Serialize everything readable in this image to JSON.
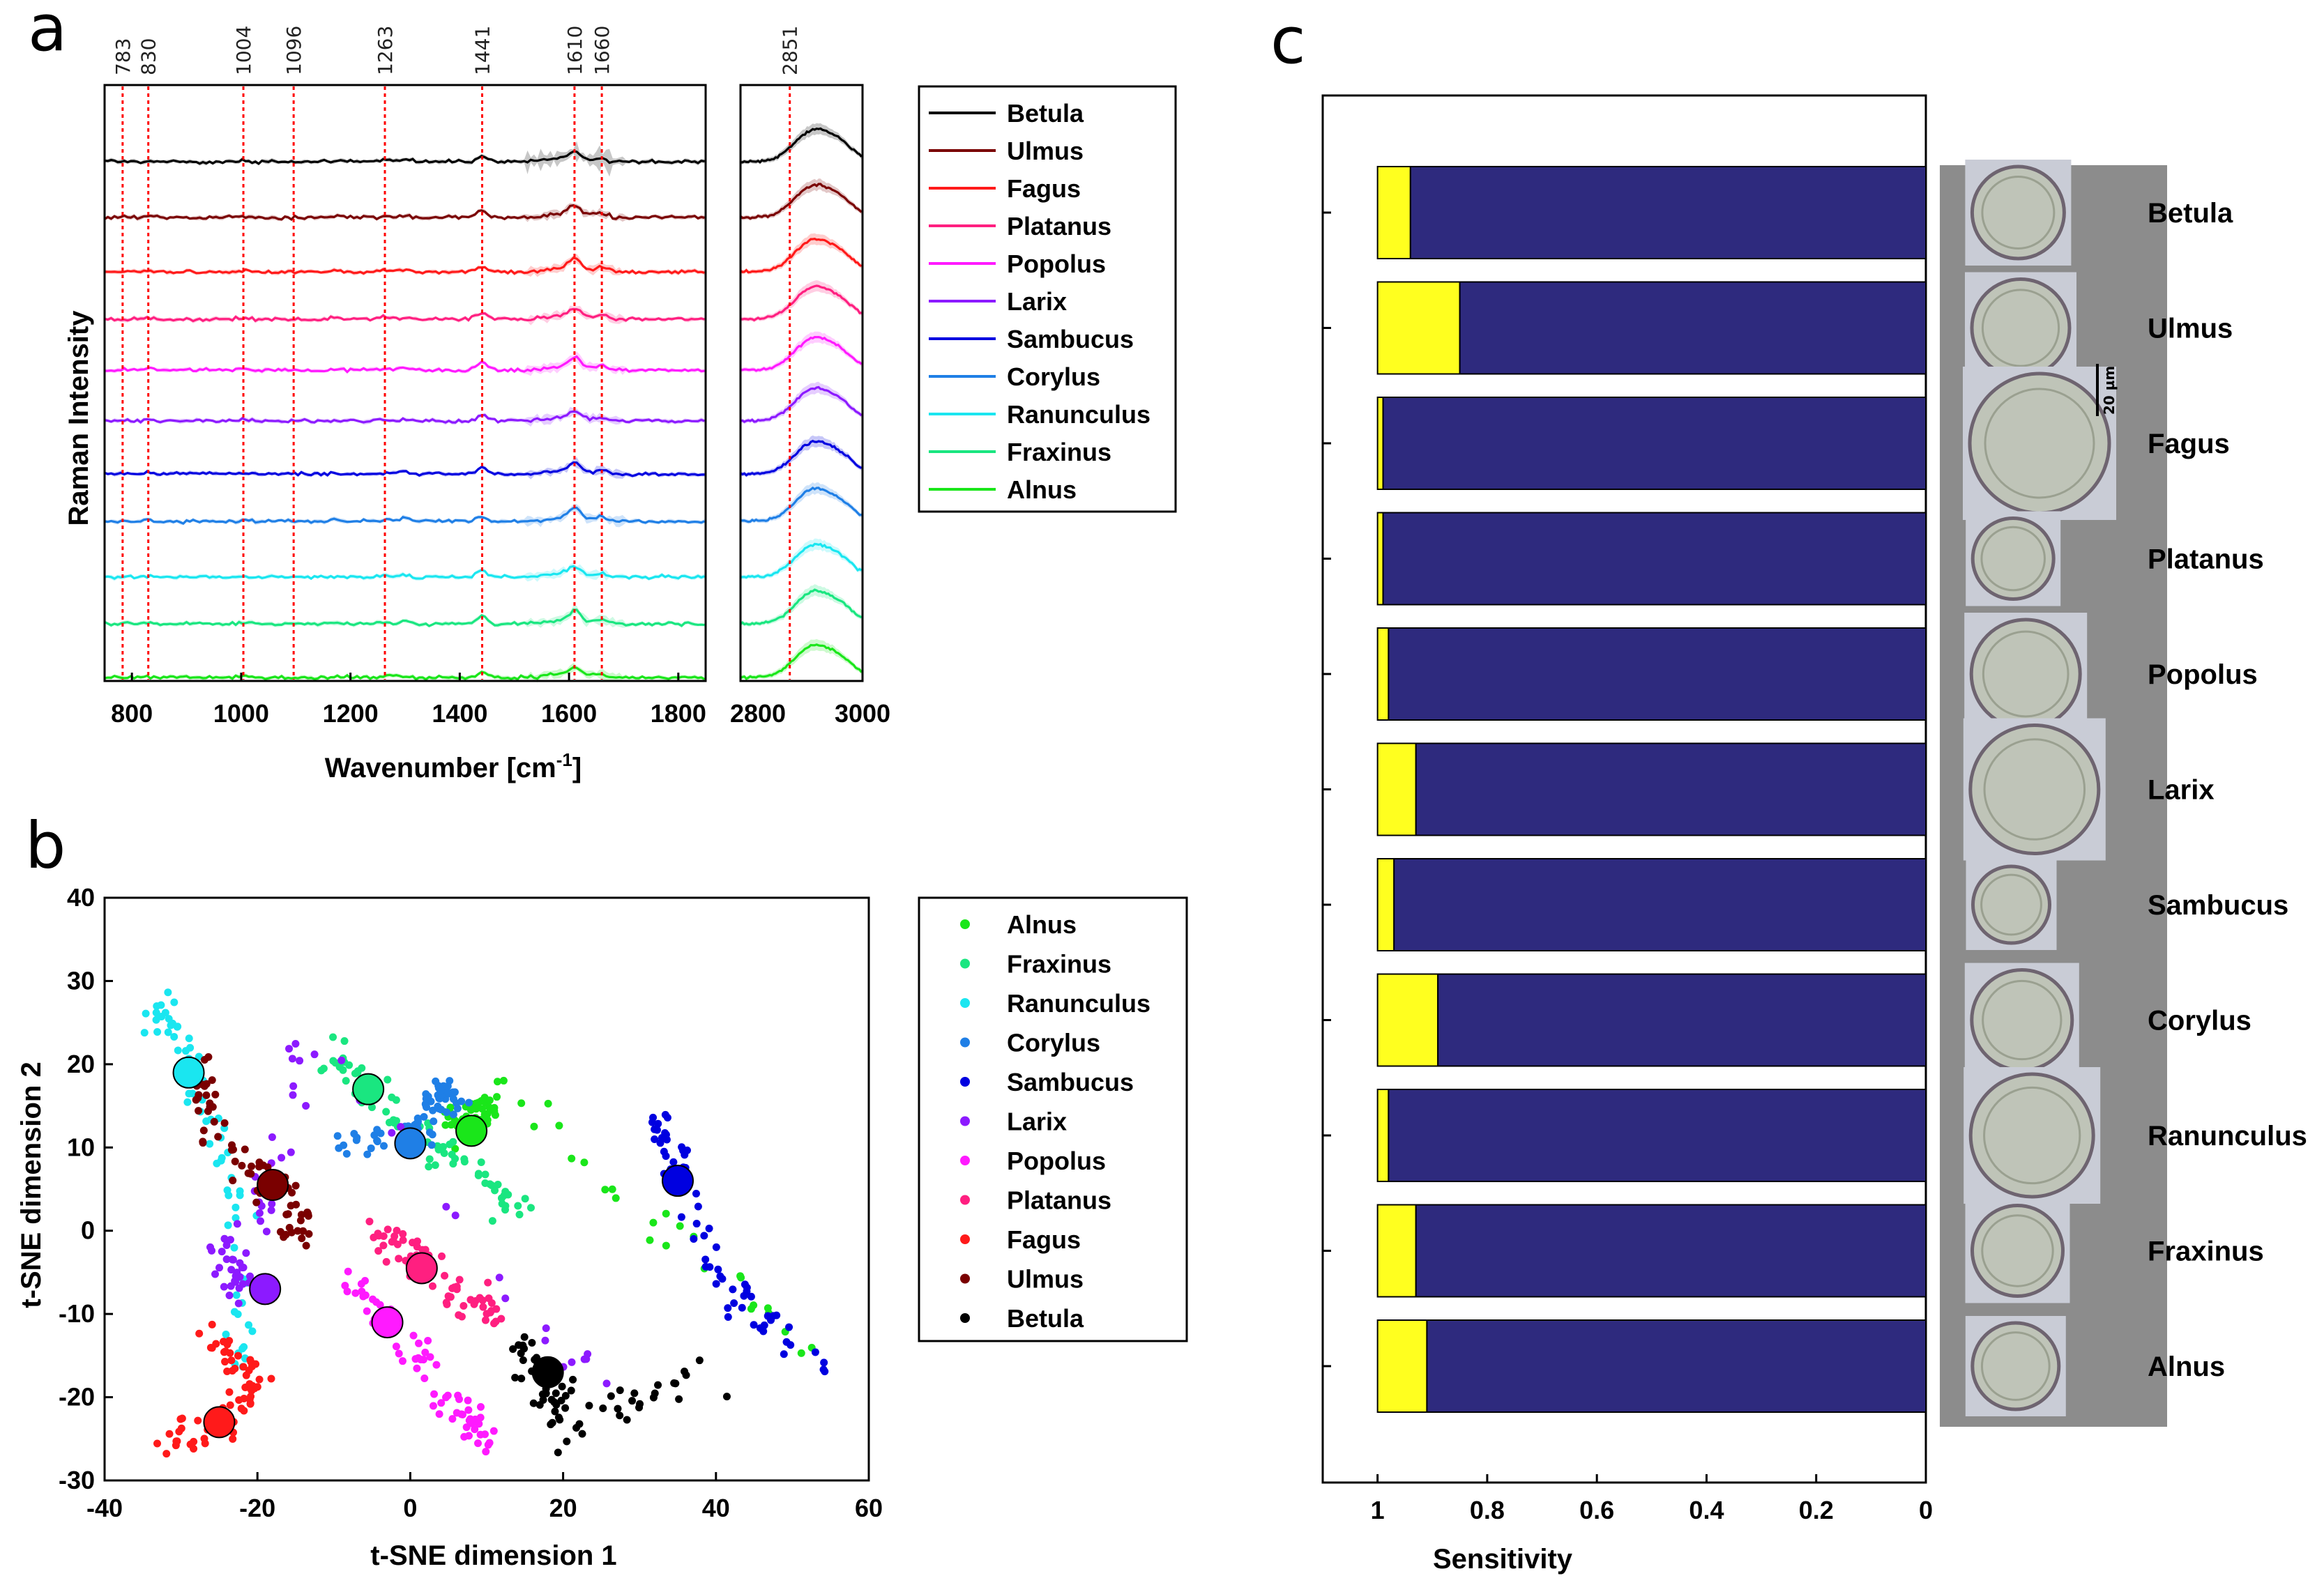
{
  "chart_data": [
    {
      "panel": "a",
      "type": "line",
      "title": "",
      "ylabel": "Raman Intensity",
      "xlabel": "Wavenumber [cm-1]",
      "xlabel_main": "Wavenumber [cm",
      "xlabel_sup": "-1",
      "xlabel_end": "]",
      "x_left_range": [
        750,
        1850
      ],
      "x_right_range": [
        2750,
        3000
      ],
      "x_ticks_left": [
        "800",
        "1000",
        "1200",
        "1400",
        "1600",
        "1800"
      ],
      "x_ticks_right": [
        "2800",
        "3000"
      ],
      "peak_markers": [
        "783",
        "830",
        "1004",
        "1096",
        "1263",
        "1441",
        "1610",
        "1660",
        "2851"
      ],
      "series": [
        {
          "name": "Betula",
          "color": "#000000"
        },
        {
          "name": "Ulmus",
          "color": "#7a0000"
        },
        {
          "name": "Fagus",
          "color": "#ff1a1a"
        },
        {
          "name": "Platanus",
          "color": "#ff1f80"
        },
        {
          "name": "Popolus",
          "color": "#ff1aff"
        },
        {
          "name": "Larix",
          "color": "#8c1aff"
        },
        {
          "name": "Sambucus",
          "color": "#0000e0"
        },
        {
          "name": "Corylus",
          "color": "#1f7fe6"
        },
        {
          "name": "Ranunculus",
          "color": "#1ae6f0"
        },
        {
          "name": "Fraxinus",
          "color": "#1ae680"
        },
        {
          "name": "Alnus",
          "color": "#1ae61a"
        }
      ]
    },
    {
      "panel": "b",
      "type": "scatter",
      "title": "",
      "xlabel": "t-SNE dimension 1",
      "ylabel": "t-SNE dimension 2",
      "xlim": [
        -40,
        60
      ],
      "ylim": [
        -30,
        40
      ],
      "x_ticks": [
        "-40",
        "-20",
        "0",
        "20",
        "40",
        "60"
      ],
      "y_ticks": [
        "40",
        "30",
        "20",
        "10",
        "0",
        "-10",
        "-20",
        "-30"
      ],
      "legend": [
        "Alnus",
        "Fraxinus",
        "Ranunculus",
        "Corylus",
        "Sambucus",
        "Larix",
        "Popolus",
        "Platanus",
        "Fagus",
        "Ulmus",
        "Betula"
      ],
      "centroids": [
        {
          "name": "Alnus",
          "color": "#1ae61a",
          "x": 8,
          "y": 12
        },
        {
          "name": "Fraxinus",
          "color": "#1ae680",
          "x": -5.5,
          "y": 17
        },
        {
          "name": "Ranunculus",
          "color": "#1ae6f0",
          "x": -29,
          "y": 19
        },
        {
          "name": "Corylus",
          "color": "#1f7fe6",
          "x": 0,
          "y": 10.5
        },
        {
          "name": "Sambucus",
          "color": "#0000e0",
          "x": 35,
          "y": 6
        },
        {
          "name": "Larix",
          "color": "#8c1aff",
          "x": -19,
          "y": -7
        },
        {
          "name": "Popolus",
          "color": "#ff1aff",
          "x": -3,
          "y": -11
        },
        {
          "name": "Platanus",
          "color": "#ff1f80",
          "x": 1.5,
          "y": -4.5
        },
        {
          "name": "Fagus",
          "color": "#ff1a1a",
          "x": -25,
          "y": -23
        },
        {
          "name": "Ulmus",
          "color": "#7a0000",
          "x": -18,
          "y": 5.5
        },
        {
          "name": "Betula",
          "color": "#000000",
          "x": 18,
          "y": -17
        }
      ]
    },
    {
      "panel": "c",
      "type": "bar",
      "orientation": "horizontal",
      "xlabel": "Sensitivity",
      "xlim": [
        1.1,
        0
      ],
      "x_ticks": [
        "1",
        "0.8",
        "0.6",
        "0.4",
        "0.2",
        "0"
      ],
      "categories": [
        "Betula",
        "Ulmus",
        "Fagus",
        "Platanus",
        "Popolus",
        "Larix",
        "Sambucus",
        "Corylus",
        "Ranunculus",
        "Fraxinus",
        "Alnus"
      ],
      "values": [
        0.94,
        0.85,
        0.99,
        0.99,
        0.98,
        0.93,
        0.97,
        0.89,
        0.98,
        0.93,
        0.91
      ],
      "bar_color": "#2e2a7e",
      "remainder_color": "#ffff1f",
      "scale_bar_label": "20 µm"
    }
  ],
  "panel_letters": {
    "a": "a",
    "b": "b",
    "c": "c"
  }
}
